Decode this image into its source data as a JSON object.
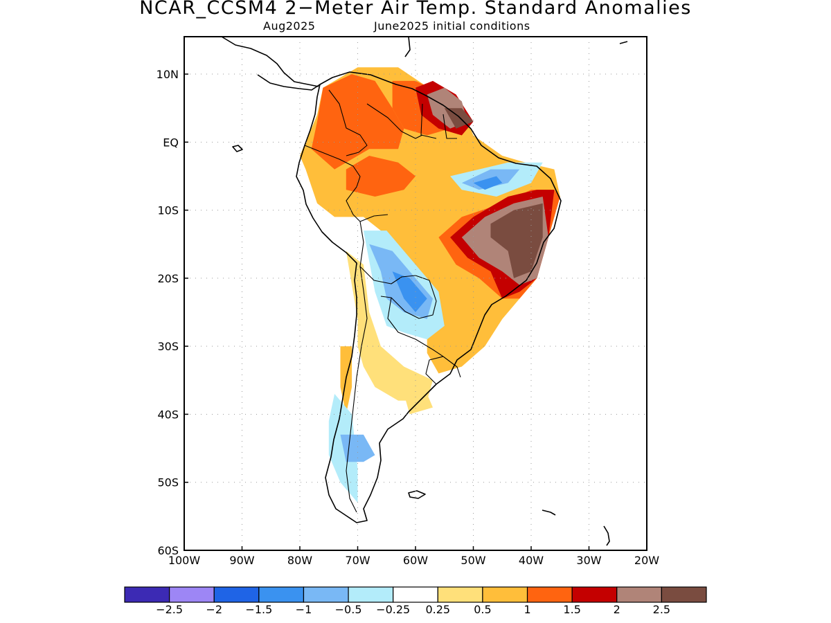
{
  "title": "NCAR_CCSM4 2−Meter Air Temp. Standard Anomalies",
  "subtitle_left": "Aug2025",
  "subtitle_right": "June2025 initial conditions",
  "map": {
    "lon_range": [
      -100,
      -20
    ],
    "lat_range": [
      -60,
      15.5
    ],
    "grid": "dotted",
    "lon_ticks": [
      {
        "value": -100,
        "label": "100W"
      },
      {
        "value": -90,
        "label": "90W"
      },
      {
        "value": -80,
        "label": "80W"
      },
      {
        "value": -70,
        "label": "70W"
      },
      {
        "value": -60,
        "label": "60W"
      },
      {
        "value": -50,
        "label": "50W"
      },
      {
        "value": -40,
        "label": "40W"
      },
      {
        "value": -30,
        "label": "30W"
      },
      {
        "value": -20,
        "label": "20W"
      }
    ],
    "lat_ticks": [
      {
        "value": 10,
        "label": "10N"
      },
      {
        "value": 0,
        "label": "EQ"
      },
      {
        "value": -10,
        "label": "10S"
      },
      {
        "value": -20,
        "label": "20S"
      },
      {
        "value": -30,
        "label": "30S"
      },
      {
        "value": -40,
        "label": "40S"
      },
      {
        "value": -50,
        "label": "50S"
      },
      {
        "value": -60,
        "label": "60S"
      }
    ]
  },
  "colorbar": {
    "colors": [
      "#3c2ab4",
      "#9d86f5",
      "#1f64e6",
      "#3a92f0",
      "#79b8f5",
      "#b3ecfa",
      "#ffffff",
      "#ffe07a",
      "#ffbe3a",
      "#ff6410",
      "#c40000",
      "#b08478",
      "#7a4c40"
    ],
    "labels": [
      "−2.5",
      "−2",
      "−1.5",
      "−1",
      "−0.5",
      "−0.25",
      "0.25",
      "0.5",
      "1",
      "1.5",
      "2",
      "2.5"
    ]
  },
  "anomaly_regions": [
    {
      "level": "0.5",
      "color": "#ffbe3a",
      "polygon": [
        [
          -80,
          -2
        ],
        [
          -77,
          4
        ],
        [
          -76,
          8
        ],
        [
          -70,
          11
        ],
        [
          -63,
          11
        ],
        [
          -56,
          7
        ],
        [
          -52,
          5
        ],
        [
          -50,
          1
        ],
        [
          -45,
          -2
        ],
        [
          -41,
          -3
        ],
        [
          -36,
          -4
        ],
        [
          -35,
          -8
        ],
        [
          -37,
          -14
        ],
        [
          -39,
          -20
        ],
        [
          -42,
          -23
        ],
        [
          -45,
          -26
        ],
        [
          -48,
          -30
        ],
        [
          -52,
          -33
        ],
        [
          -56,
          -34
        ],
        [
          -58,
          -31
        ],
        [
          -58,
          -27
        ],
        [
          -62,
          -24
        ],
        [
          -64,
          -19
        ],
        [
          -66,
          -13
        ],
        [
          -69,
          -11
        ],
        [
          -74,
          -11
        ],
        [
          -77,
          -9
        ],
        [
          -79,
          -4
        ]
      ]
    },
    {
      "level": "0.25",
      "color": "#ffe07a",
      "polygon": [
        [
          -72,
          -16
        ],
        [
          -69,
          -18
        ],
        [
          -68,
          -25
        ],
        [
          -66,
          -30
        ],
        [
          -62,
          -33
        ],
        [
          -57,
          -35
        ],
        [
          -58,
          -38
        ],
        [
          -63,
          -38
        ],
        [
          -67,
          -36
        ],
        [
          -69,
          -33
        ],
        [
          -70,
          -30
        ],
        [
          -70,
          -26
        ],
        [
          -71,
          -21
        ]
      ]
    },
    {
      "level": "0.5",
      "color": "#ffbe3a",
      "polygon": [
        [
          -73,
          -30
        ],
        [
          -71,
          -30
        ],
        [
          -71,
          -36
        ],
        [
          -72,
          -40
        ],
        [
          -73,
          -36
        ]
      ]
    },
    {
      "level": "0.25",
      "color": "#ffe07a",
      "polygon": [
        [
          -62,
          -37
        ],
        [
          -58,
          -37
        ],
        [
          -57,
          -39
        ],
        [
          -61,
          -40
        ]
      ]
    },
    {
      "level": "1",
      "color": "#ff6410",
      "polygon": [
        [
          -78,
          -1
        ],
        [
          -77,
          3
        ],
        [
          -76,
          8
        ],
        [
          -71,
          10
        ],
        [
          -67,
          9
        ],
        [
          -64,
          5
        ],
        [
          -62,
          2
        ],
        [
          -63,
          -1
        ],
        [
          -68,
          -1
        ],
        [
          -74,
          -4
        ]
      ]
    },
    {
      "level": "1",
      "color": "#ff6410",
      "polygon": [
        [
          -72,
          -4
        ],
        [
          -68,
          -2
        ],
        [
          -63,
          -3
        ],
        [
          -60,
          -5
        ],
        [
          -62,
          -7
        ],
        [
          -67,
          -8
        ],
        [
          -72,
          -7
        ]
      ]
    },
    {
      "level": "1",
      "color": "#ff6410",
      "polygon": [
        [
          -64,
          9
        ],
        [
          -60,
          9
        ],
        [
          -55,
          7
        ],
        [
          -52,
          4
        ],
        [
          -54,
          2
        ],
        [
          -58,
          1
        ],
        [
          -62,
          2
        ],
        [
          -64,
          5
        ]
      ]
    },
    {
      "level": "1",
      "color": "#ff6410",
      "polygon": [
        [
          -56,
          -14
        ],
        [
          -52,
          -11
        ],
        [
          -45,
          -9
        ],
        [
          -40,
          -7
        ],
        [
          -36,
          -7
        ],
        [
          -35,
          -8
        ],
        [
          -37,
          -14
        ],
        [
          -39,
          -20
        ],
        [
          -42,
          -23
        ],
        [
          -45,
          -23
        ],
        [
          -49,
          -20
        ],
        [
          -53,
          -18
        ]
      ]
    },
    {
      "level": "1.5",
      "color": "#c40000",
      "polygon": [
        [
          -54,
          -14
        ],
        [
          -50,
          -11
        ],
        [
          -44,
          -8
        ],
        [
          -39,
          -7
        ],
        [
          -36,
          -7
        ],
        [
          -37,
          -14
        ],
        [
          -39,
          -20
        ],
        [
          -42,
          -22
        ],
        [
          -45,
          -23
        ],
        [
          -47,
          -19
        ],
        [
          -51,
          -17
        ]
      ]
    },
    {
      "level": "2",
      "color": "#b08478",
      "polygon": [
        [
          -52,
          -14
        ],
        [
          -48,
          -11
        ],
        [
          -43,
          -9
        ],
        [
          -38,
          -8
        ],
        [
          -37,
          -14
        ],
        [
          -39,
          -20
        ],
        [
          -42,
          -21
        ],
        [
          -45,
          -19
        ],
        [
          -49,
          -17
        ]
      ]
    },
    {
      "level": "2.5",
      "color": "#7a4c40",
      "polygon": [
        [
          -47,
          -12
        ],
        [
          -43,
          -10
        ],
        [
          -38,
          -9
        ],
        [
          -38,
          -14
        ],
        [
          -40,
          -19
        ],
        [
          -43,
          -20
        ],
        [
          -44,
          -16
        ],
        [
          -47,
          -14
        ]
      ]
    },
    {
      "level": "1.5",
      "color": "#c40000",
      "polygon": [
        [
          -60,
          8
        ],
        [
          -57,
          9
        ],
        [
          -53,
          7
        ],
        [
          -50,
          3
        ],
        [
          -52,
          1
        ],
        [
          -56,
          2
        ],
        [
          -59,
          4
        ]
      ]
    },
    {
      "level": "2",
      "color": "#b08478",
      "polygon": [
        [
          -58,
          7
        ],
        [
          -55,
          8
        ],
        [
          -52,
          6
        ],
        [
          -51,
          3
        ],
        [
          -54,
          2
        ],
        [
          -57,
          4
        ]
      ]
    },
    {
      "level": "2.5",
      "color": "#7a4c40",
      "polygon": [
        [
          -55,
          5
        ],
        [
          -52,
          5
        ],
        [
          -50,
          3
        ],
        [
          -53,
          2
        ]
      ]
    },
    {
      "level": "-0.25",
      "color": "#b3ecfa",
      "polygon": [
        [
          -54,
          -5
        ],
        [
          -49,
          -4
        ],
        [
          -44,
          -3
        ],
        [
          -38,
          -3
        ],
        [
          -40,
          -6
        ],
        [
          -46,
          -8
        ],
        [
          -52,
          -7
        ]
      ]
    },
    {
      "level": "-0.5",
      "color": "#79b8f5",
      "polygon": [
        [
          -52,
          -6
        ],
        [
          -47,
          -4
        ],
        [
          -42,
          -4
        ],
        [
          -44,
          -6
        ],
        [
          -49,
          -7
        ]
      ]
    },
    {
      "level": "-1",
      "color": "#3a92f0",
      "polygon": [
        [
          -50,
          -6
        ],
        [
          -46,
          -5
        ],
        [
          -45,
          -6
        ],
        [
          -48,
          -7
        ]
      ]
    },
    {
      "level": "-0.25",
      "color": "#b3ecfa",
      "polygon": [
        [
          -69,
          -13
        ],
        [
          -65,
          -13
        ],
        [
          -60,
          -18
        ],
        [
          -56,
          -22
        ],
        [
          -55,
          -27
        ],
        [
          -58,
          -29
        ],
        [
          -62,
          -28
        ],
        [
          -65,
          -27
        ],
        [
          -67,
          -22
        ]
      ]
    },
    {
      "level": "-0.5",
      "color": "#79b8f5",
      "polygon": [
        [
          -68,
          -15
        ],
        [
          -64,
          -16
        ],
        [
          -60,
          -20
        ],
        [
          -57,
          -23
        ],
        [
          -58,
          -26
        ],
        [
          -62,
          -25
        ],
        [
          -65,
          -23
        ],
        [
          -66,
          -19
        ]
      ]
    },
    {
      "level": "-1",
      "color": "#3a92f0",
      "polygon": [
        [
          -64,
          -19
        ],
        [
          -61,
          -20
        ],
        [
          -58,
          -23
        ],
        [
          -60,
          -25
        ],
        [
          -62,
          -23
        ]
      ]
    },
    {
      "level": "-0.25",
      "color": "#b3ecfa",
      "polygon": [
        [
          -74,
          -37
        ],
        [
          -71,
          -40
        ],
        [
          -70,
          -48
        ],
        [
          -70,
          -53
        ],
        [
          -73,
          -50
        ],
        [
          -75,
          -46
        ],
        [
          -75,
          -41
        ]
      ]
    },
    {
      "level": "-0.5",
      "color": "#79b8f5",
      "polygon": [
        [
          -73,
          -43
        ],
        [
          -69,
          -43
        ],
        [
          -67,
          -46
        ],
        [
          -69,
          -47
        ],
        [
          -72,
          -47
        ]
      ]
    }
  ]
}
